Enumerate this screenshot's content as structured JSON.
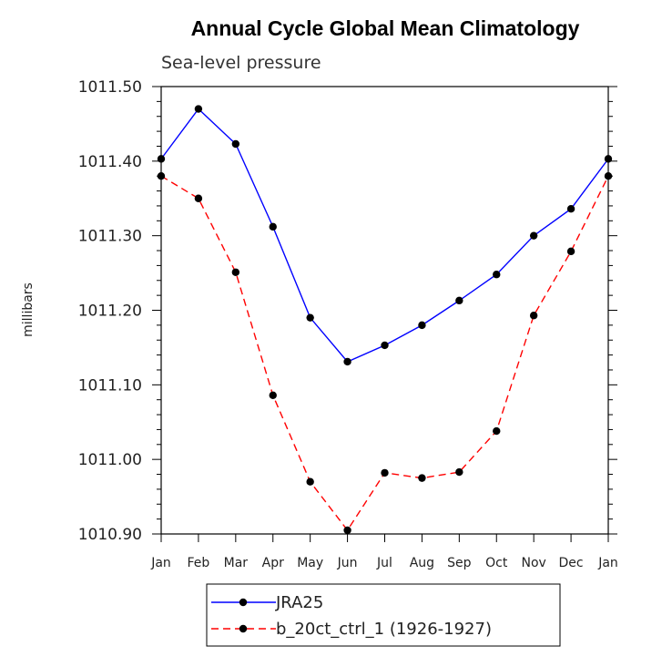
{
  "chart_data": {
    "type": "line",
    "title": "Annual Cycle Global Mean Climatology",
    "subtitle": "Sea-level pressure",
    "xlabel": "",
    "ylabel": "millibars",
    "categories": [
      "Jan",
      "Feb",
      "Mar",
      "Apr",
      "May",
      "Jun",
      "Jul",
      "Aug",
      "Sep",
      "Oct",
      "Nov",
      "Dec",
      "Jan"
    ],
    "ylim": [
      1010.9,
      1011.5
    ],
    "yticks": [
      1010.9,
      1011.0,
      1011.1,
      1011.2,
      1011.3,
      1011.4,
      1011.5
    ],
    "ytick_labels": [
      "1010.90",
      "1011.00",
      "1011.10",
      "1011.20",
      "1011.30",
      "1011.40",
      "1011.50"
    ],
    "grid": false,
    "legend_position": "bottom",
    "series": [
      {
        "name": "JRA25",
        "color": "#0000ff",
        "dash": "solid",
        "marker": "filled-circle",
        "values": [
          1011.403,
          1011.47,
          1011.423,
          1011.312,
          1011.19,
          1011.131,
          1011.153,
          1011.18,
          1011.213,
          1011.248,
          1011.3,
          1011.336,
          1011.403
        ]
      },
      {
        "name": "b_20ct_ctrl_1 (1926-1927)",
        "color": "#ff0000",
        "dash": "dashed",
        "marker": "filled-circle",
        "values": [
          1011.38,
          1011.35,
          1011.251,
          1011.086,
          1010.97,
          1010.905,
          1010.982,
          1010.975,
          1010.983,
          1011.038,
          1011.193,
          1011.279,
          1011.38
        ]
      }
    ]
  }
}
